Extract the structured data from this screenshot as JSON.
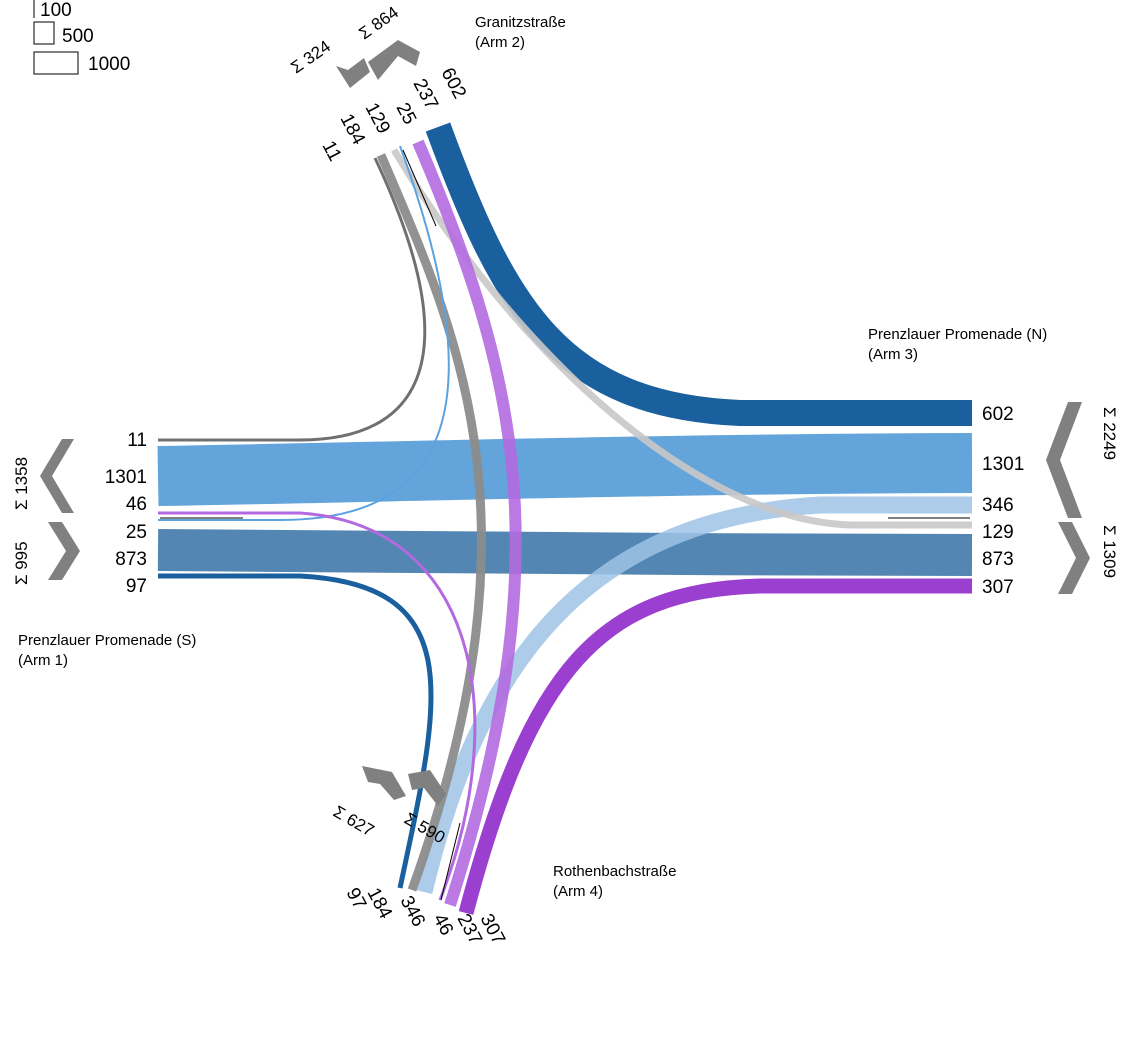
{
  "legend": {
    "values": [
      "100",
      "500",
      "1000"
    ]
  },
  "arms": [
    {
      "id": "arm1",
      "name": "Prenzlauer Promenade (S)",
      "sub": "(Arm 1)",
      "labels": [
        "11",
        "1301",
        "46",
        "25",
        "873",
        "97"
      ],
      "sum_in": "Σ 1358",
      "sum_out": "Σ 995"
    },
    {
      "id": "arm2",
      "name": "Granitzstraße",
      "sub": "(Arm 2)",
      "labels": [
        "11",
        "184",
        "129",
        "25",
        "237",
        "602"
      ],
      "sum_in": "Σ 324",
      "sum_out": "Σ 864"
    },
    {
      "id": "arm3",
      "name": "Prenzlauer Promenade (N)",
      "sub": "(Arm 3)",
      "labels": [
        "602",
        "1301",
        "346",
        "129",
        "873",
        "307"
      ],
      "sum_in": "Σ 2249",
      "sum_out": "Σ 1309"
    },
    {
      "id": "arm4",
      "name": "Rothenbachstraße",
      "sub": "(Arm 4)",
      "labels": [
        "97",
        "184",
        "346",
        "46",
        "237",
        "307"
      ],
      "sum_in": "Σ 627",
      "sum_out": "Σ 590"
    }
  ],
  "flows": [
    {
      "from": "Arm 2",
      "to": "Arm 3",
      "volume": 602,
      "color": "#1a5f9e"
    },
    {
      "from": "Arm 1",
      "to": "Arm 3",
      "volume": 1301,
      "color": "#5b9fd8"
    },
    {
      "from": "Arm 3",
      "to": "Arm 1",
      "volume": 873,
      "color": "#4a7fae"
    },
    {
      "from": "Arm 4",
      "to": "Arm 3",
      "volume": 346,
      "color": "#9dc3e6"
    },
    {
      "from": "Arm 2",
      "to": "Arm 3",
      "volume": 129,
      "color": "#c8c8c8"
    },
    {
      "from": "Arm 4",
      "to": "Arm 3",
      "volume": 307,
      "color": "#9a3fd0"
    },
    {
      "from": "Arm 2",
      "to": "Arm 4",
      "volume": 237,
      "color": "#b36ae0"
    },
    {
      "from": "Arm 2",
      "to": "Arm 4",
      "volume": 184,
      "color": "#8c8c8c"
    },
    {
      "from": "Arm 2",
      "to": "Arm 1",
      "volume": 11,
      "color": "#707070"
    },
    {
      "from": "Arm 2",
      "to": "Arm 1",
      "volume": 25,
      "color": "#5aa3e0"
    },
    {
      "from": "Arm 1",
      "to": "Arm 4",
      "volume": 97,
      "color": "#1a5f9e"
    },
    {
      "from": "Arm 1",
      "to": "Arm 4",
      "volume": 46,
      "color": "#b36ae0"
    }
  ]
}
